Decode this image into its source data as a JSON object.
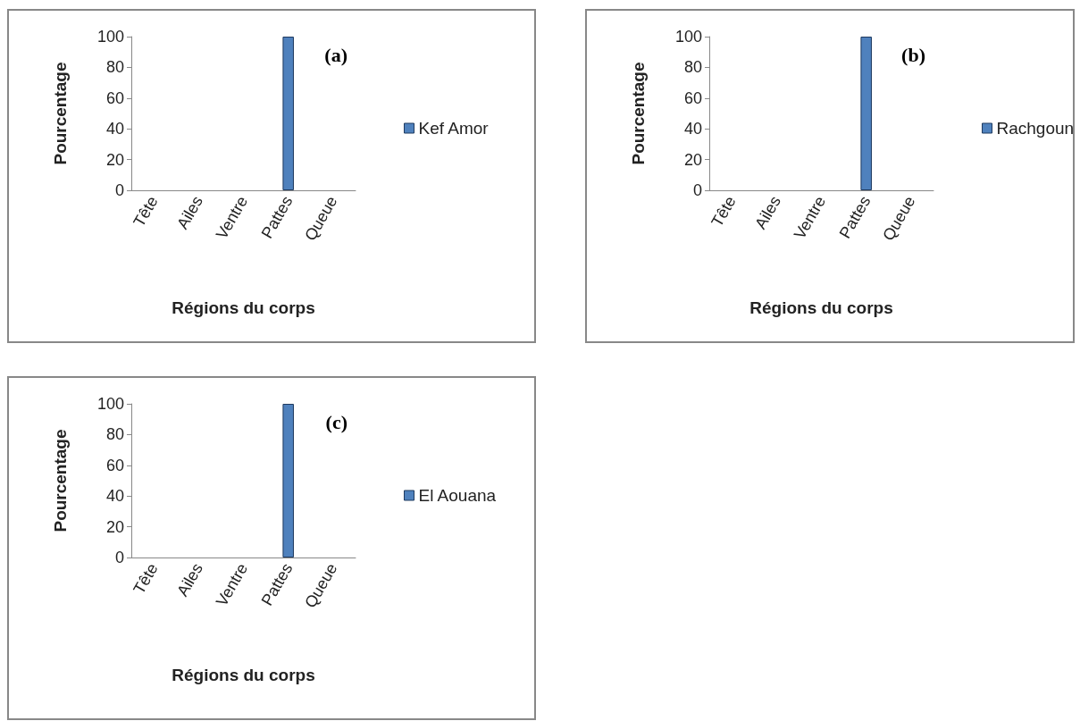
{
  "chart_data": [
    {
      "type": "bar",
      "title": "(a)",
      "xlabel": "Régions du corps",
      "ylabel": "Pourcentage",
      "categories": [
        "Tête",
        "Ailes",
        "Ventre",
        "Pattes",
        "Queue"
      ],
      "series": [
        {
          "name": "Kef Amor",
          "color": "#4f81bd",
          "values": [
            0,
            0,
            0,
            100,
            0
          ]
        }
      ],
      "ylim": [
        0,
        100
      ],
      "yticks": [
        0,
        20,
        40,
        60,
        80,
        100
      ],
      "grid": false,
      "legend": "right"
    },
    {
      "type": "bar",
      "title": "(b)",
      "xlabel": "Régions du corps",
      "ylabel": "Pourcentage",
      "categories": [
        "Tête",
        "Ailes",
        "Ventre",
        "Pattes",
        "Queue"
      ],
      "series": [
        {
          "name": "Rachgoun",
          "color": "#4f81bd",
          "values": [
            0,
            0,
            0,
            100,
            0
          ]
        }
      ],
      "ylim": [
        0,
        100
      ],
      "yticks": [
        0,
        20,
        40,
        60,
        80,
        100
      ],
      "grid": false,
      "legend": "right"
    },
    {
      "type": "bar",
      "title": "(c)",
      "xlabel": "Régions du corps",
      "ylabel": "Pourcentage",
      "categories": [
        "Tête",
        "Ailes",
        "Ventre",
        "Pattes",
        "Queue"
      ],
      "series": [
        {
          "name": "El Aouana",
          "color": "#4f81bd",
          "values": [
            0,
            0,
            0,
            100,
            0
          ]
        }
      ],
      "ylim": [
        0,
        100
      ],
      "yticks": [
        0,
        20,
        40,
        60,
        80,
        100
      ],
      "grid": false,
      "legend": "right"
    }
  ]
}
